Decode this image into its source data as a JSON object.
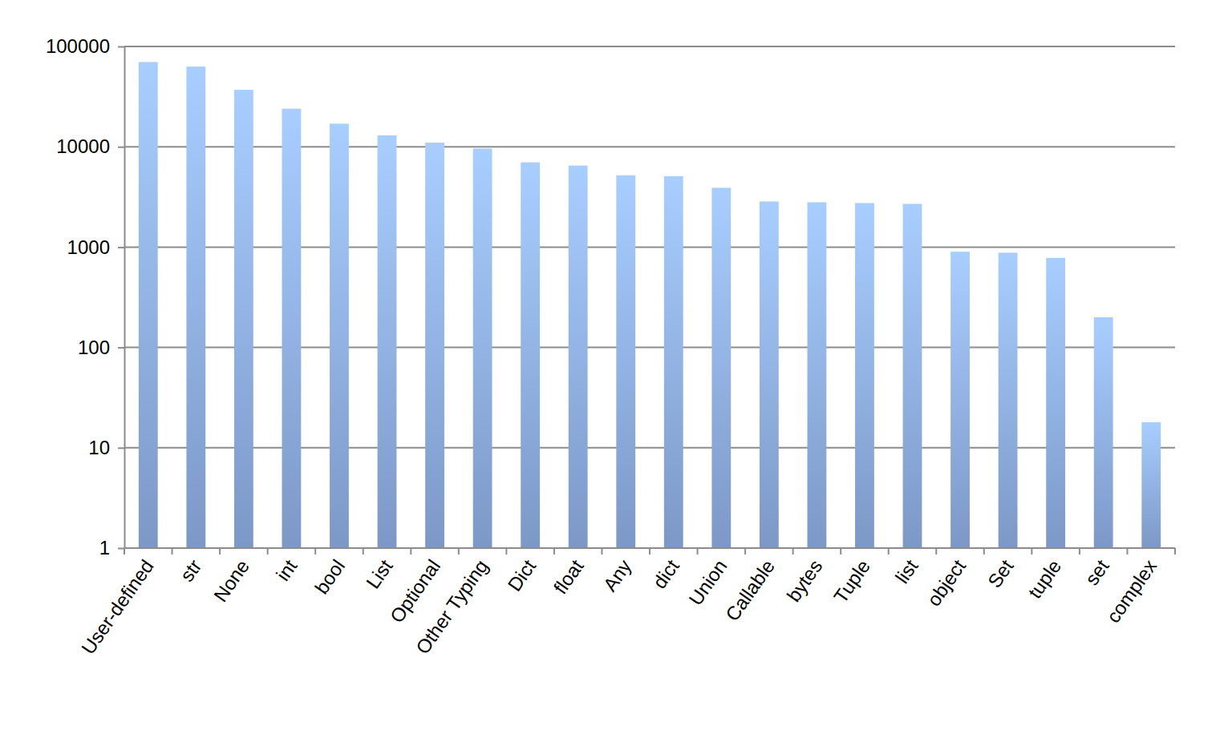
{
  "chart_data": {
    "type": "bar",
    "categories": [
      "User-defined",
      "str",
      "None",
      "int",
      "bool",
      "List",
      "Optional",
      "Other Typing",
      "Dict",
      "float",
      "Any",
      "dict",
      "Union",
      "Callable",
      "bytes",
      "Tuple",
      "list",
      "object",
      "Set",
      "tuple",
      "set",
      "complex"
    ],
    "values": [
      70000,
      63000,
      37000,
      24000,
      17000,
      13000,
      11000,
      9600,
      7000,
      6500,
      5200,
      5100,
      3900,
      2850,
      2800,
      2750,
      2700,
      900,
      880,
      780,
      200,
      18
    ],
    "color": "#92b3ea",
    "log": "y",
    "ylim": [
      1,
      100000
    ],
    "yticks": [
      1,
      10,
      100,
      1000,
      10000,
      100000
    ],
    "grid": true
  }
}
